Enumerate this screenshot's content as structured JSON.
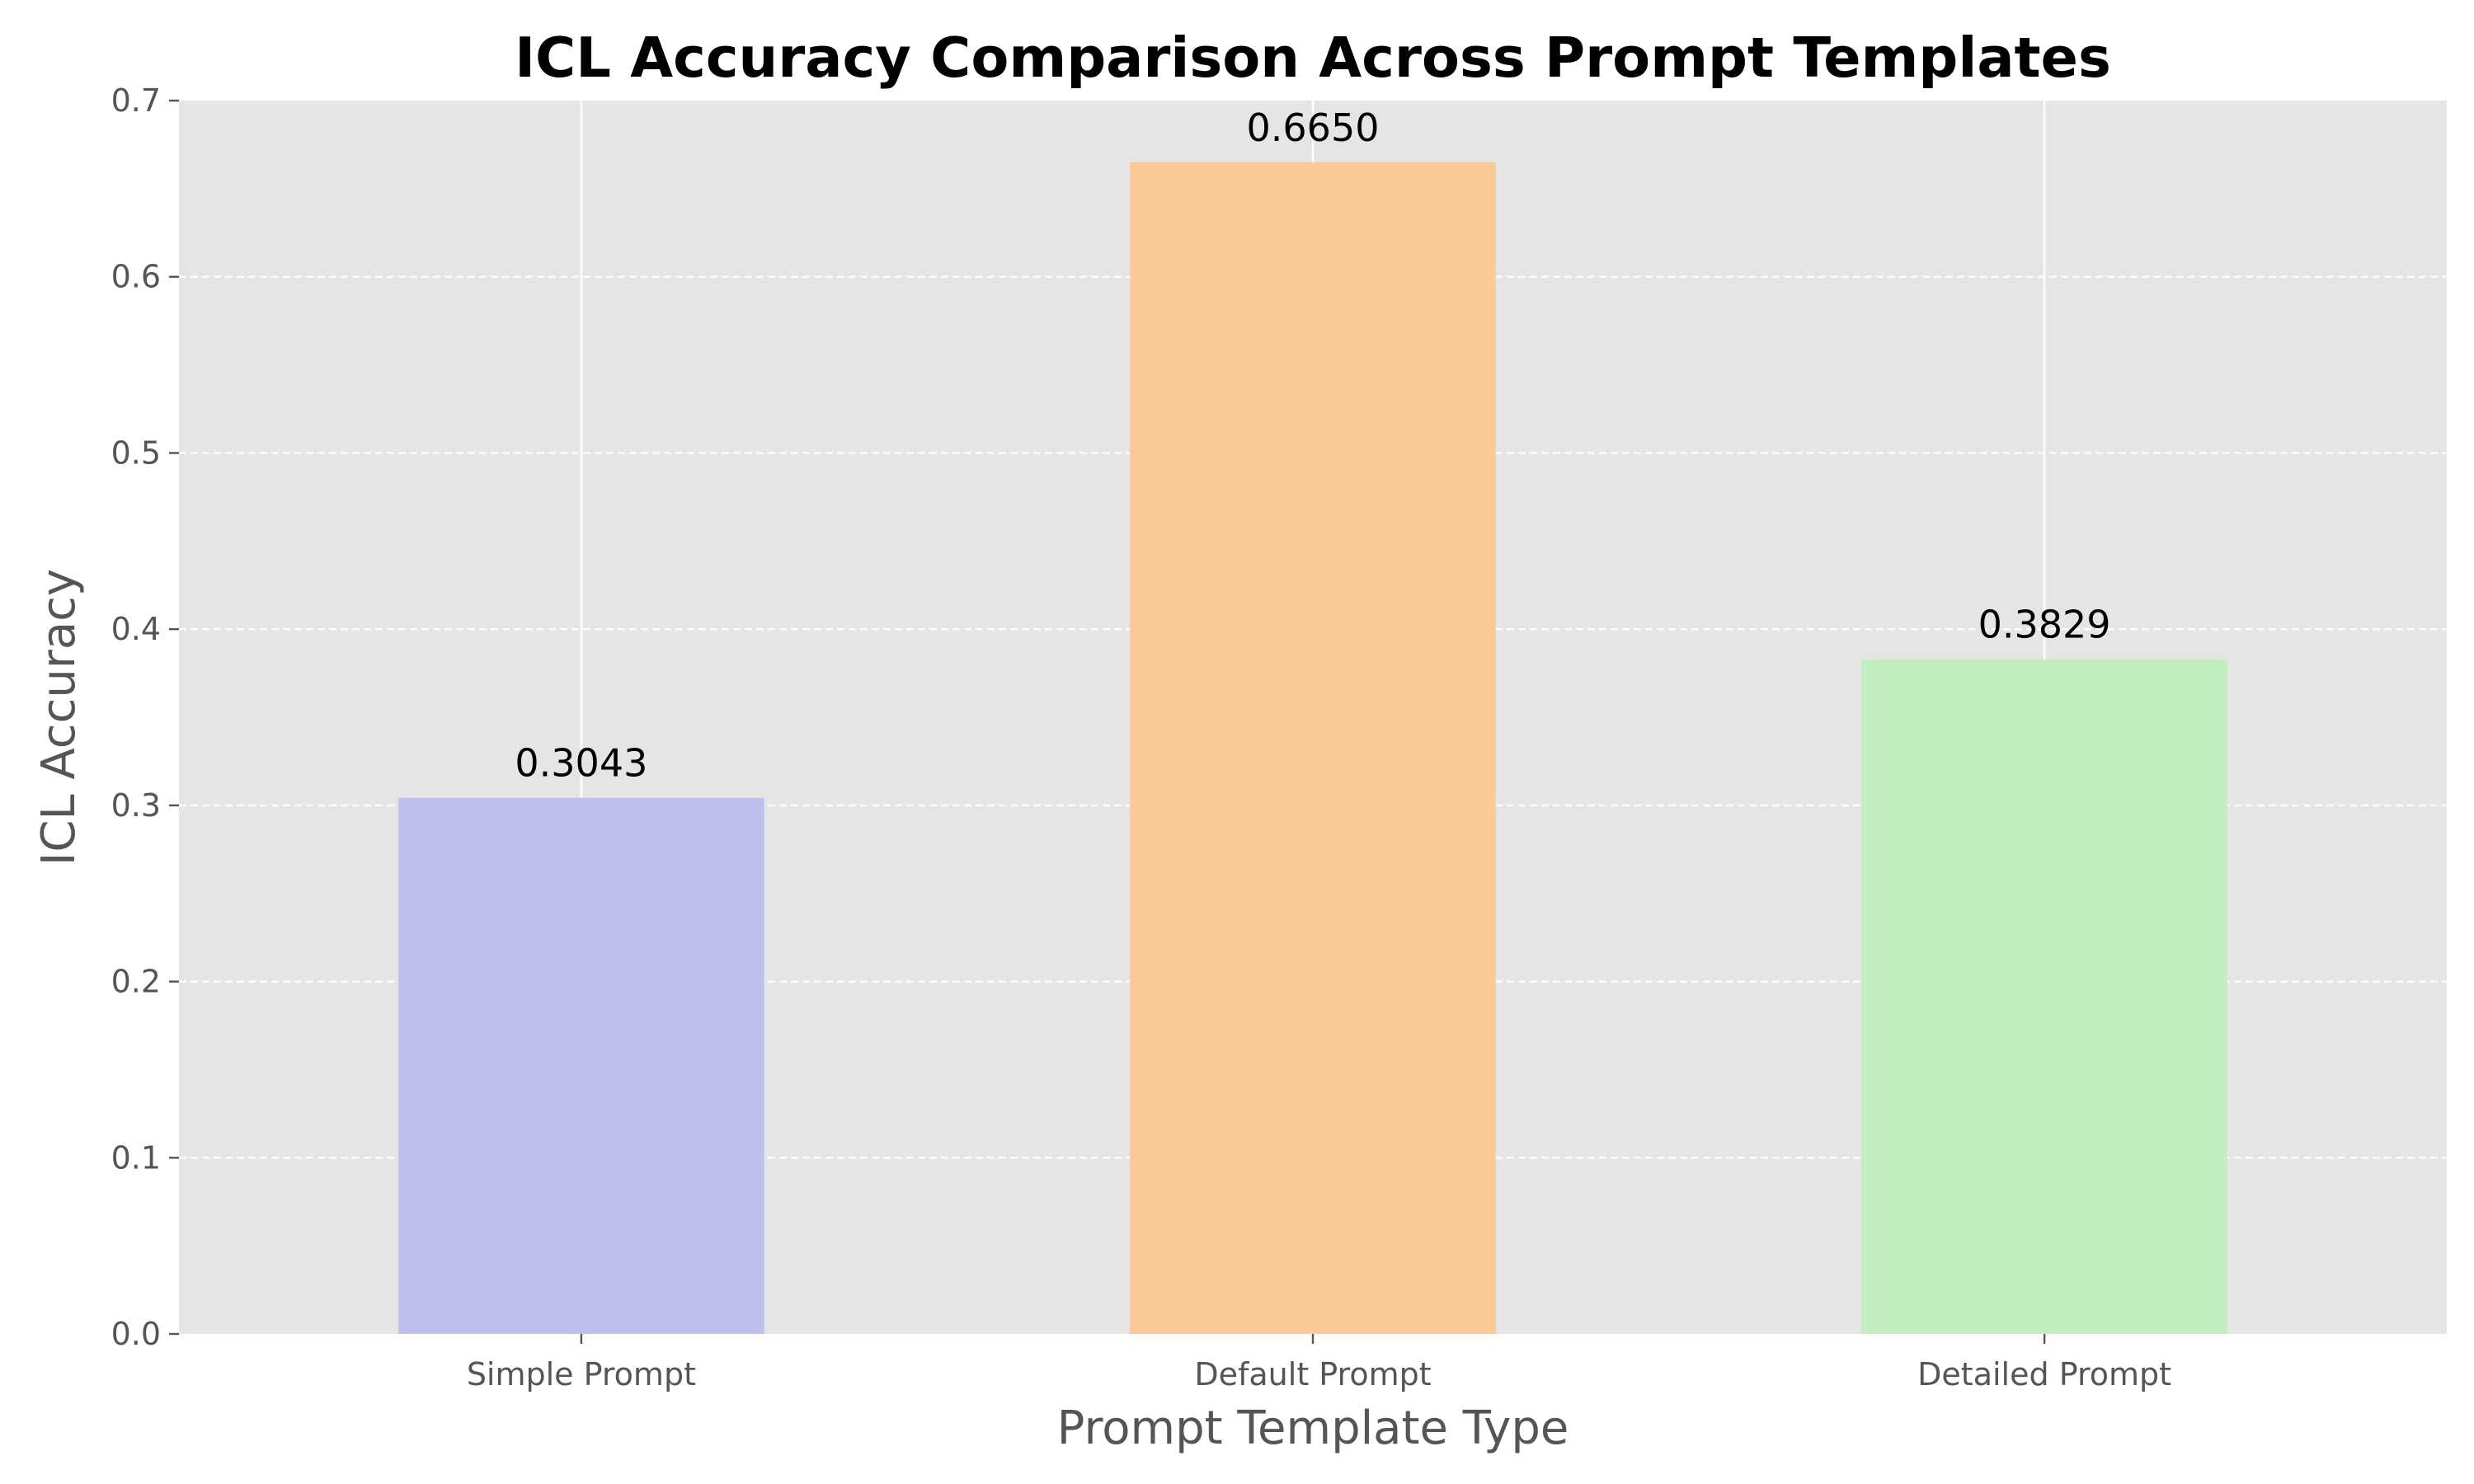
{
  "chart_data": {
    "type": "bar",
    "title": "ICL Accuracy Comparison Across Prompt Templates",
    "xlabel": "Prompt Template Type",
    "ylabel": "ICL Accuracy",
    "categories": [
      "Simple Prompt",
      "Default Prompt",
      "Detailed Prompt"
    ],
    "values": [
      0.3043,
      0.665,
      0.3829
    ],
    "value_labels": [
      "0.3043",
      "0.6650",
      "0.3829"
    ],
    "colors": [
      "#c0c0ef",
      "#fec999",
      "#c2efc0"
    ],
    "ylim": [
      0,
      0.7
    ],
    "yticks": [
      0.0,
      0.1,
      0.2,
      0.3,
      0.4,
      0.5,
      0.6,
      0.7
    ],
    "ytick_labels": [
      "0.0",
      "0.1",
      "0.2",
      "0.3",
      "0.4",
      "0.5",
      "0.6",
      "0.7"
    ],
    "grid": true,
    "background_color": "#e5e5e5"
  }
}
